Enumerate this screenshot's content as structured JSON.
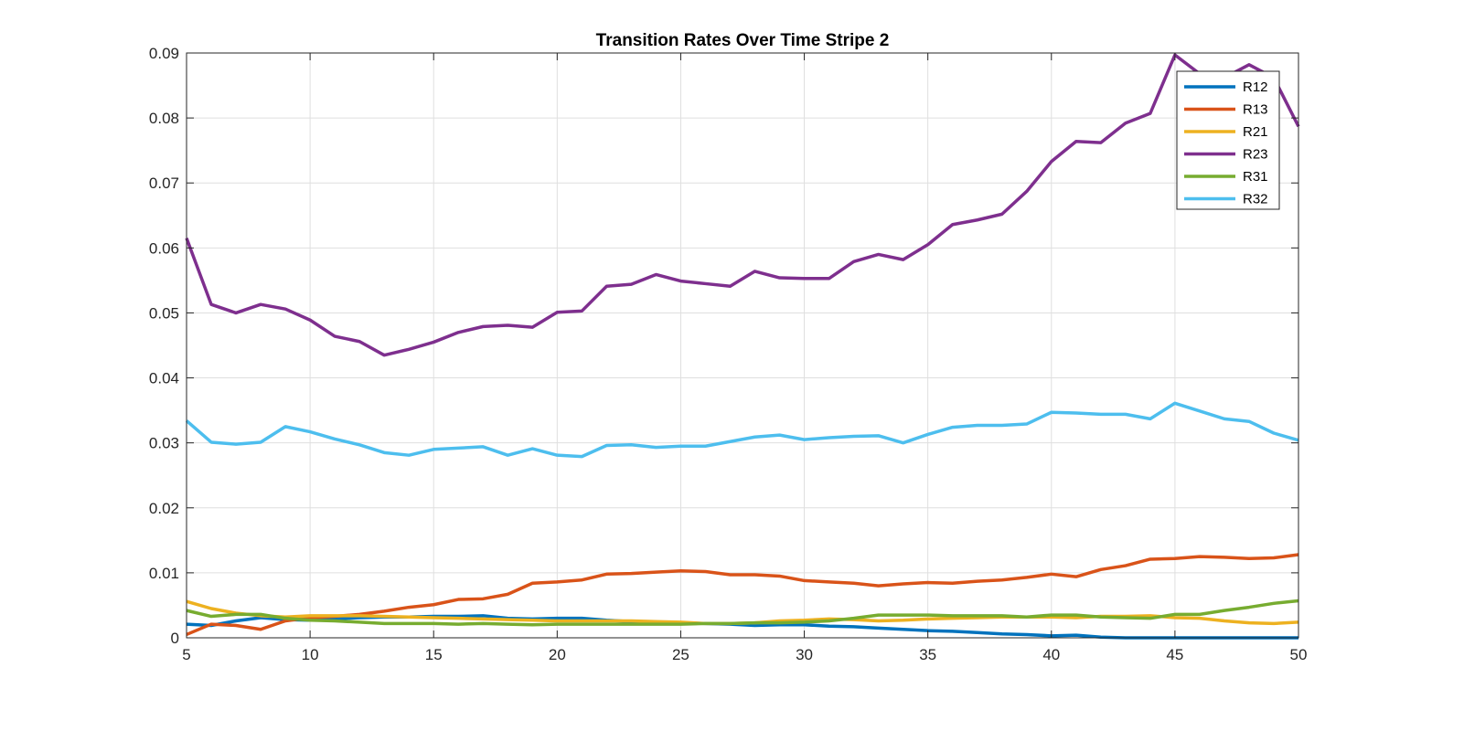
{
  "chart_data": {
    "type": "line",
    "title": "Transition Rates Over Time Stripe 2",
    "xlabel": "",
    "ylabel": "",
    "xlim": [
      5,
      50
    ],
    "ylim": [
      0,
      0.09
    ],
    "xticks": [
      5,
      10,
      15,
      20,
      25,
      30,
      35,
      40,
      45,
      50
    ],
    "xtick_labels": [
      "5",
      "10",
      "15",
      "20",
      "25",
      "30",
      "35",
      "40",
      "45",
      "50"
    ],
    "yticks": [
      0,
      0.01,
      0.02,
      0.03,
      0.04,
      0.05,
      0.06,
      0.07,
      0.08,
      0.09
    ],
    "ytick_labels": [
      "0",
      "0.01",
      "0.02",
      "0.03",
      "0.04",
      "0.05",
      "0.06",
      "0.07",
      "0.08",
      "0.09"
    ],
    "grid": true,
    "legend_position": "top-right",
    "x": [
      5,
      6,
      7,
      8,
      9,
      10,
      11,
      12,
      13,
      14,
      15,
      16,
      17,
      18,
      19,
      20,
      21,
      22,
      23,
      24,
      25,
      26,
      27,
      28,
      29,
      30,
      31,
      32,
      33,
      34,
      35,
      36,
      37,
      38,
      39,
      40,
      41,
      42,
      43,
      44,
      45,
      46,
      47,
      48,
      49,
      50
    ],
    "series": [
      {
        "name": "R12",
        "color": "#0072BD",
        "values": [
          0.0021,
          0.0019,
          0.0026,
          0.0031,
          0.0028,
          0.0027,
          0.0029,
          0.0031,
          0.0032,
          0.0032,
          0.0033,
          0.0033,
          0.0034,
          0.003,
          0.0029,
          0.003,
          0.003,
          0.0027,
          0.0025,
          0.0024,
          0.0023,
          0.0022,
          0.0021,
          0.0019,
          0.002,
          0.002,
          0.0018,
          0.0017,
          0.0015,
          0.0013,
          0.0011,
          0.001,
          0.0008,
          0.0006,
          0.0005,
          0.0003,
          0.0004,
          0.0001,
          0.0,
          0.0,
          0.0,
          0.0,
          0.0,
          0.0,
          0.0,
          0.0
        ]
      },
      {
        "name": "R13",
        "color": "#D95319",
        "values": [
          0.0005,
          0.0021,
          0.0019,
          0.0013,
          0.0026,
          0.0031,
          0.0033,
          0.0036,
          0.0041,
          0.0047,
          0.0051,
          0.0059,
          0.006,
          0.0067,
          0.0084,
          0.0086,
          0.0089,
          0.0098,
          0.0099,
          0.0101,
          0.0103,
          0.0102,
          0.0097,
          0.0097,
          0.0095,
          0.0088,
          0.0086,
          0.0084,
          0.008,
          0.0083,
          0.0085,
          0.0084,
          0.0087,
          0.0089,
          0.0093,
          0.0098,
          0.0094,
          0.0105,
          0.0111,
          0.0121,
          0.0122,
          0.0125,
          0.0124,
          0.0122,
          0.0123,
          0.0128
        ]
      },
      {
        "name": "R21",
        "color": "#EDB120",
        "values": [
          0.0056,
          0.0045,
          0.0038,
          0.0034,
          0.0032,
          0.0034,
          0.0034,
          0.0034,
          0.0033,
          0.0032,
          0.0031,
          0.003,
          0.0029,
          0.0028,
          0.0027,
          0.0026,
          0.0026,
          0.0026,
          0.0026,
          0.0025,
          0.0024,
          0.0022,
          0.0022,
          0.0023,
          0.0026,
          0.0027,
          0.0029,
          0.0028,
          0.0026,
          0.0027,
          0.0029,
          0.003,
          0.0031,
          0.0032,
          0.0032,
          0.0032,
          0.0031,
          0.0033,
          0.0033,
          0.0034,
          0.0031,
          0.003,
          0.0026,
          0.0023,
          0.0022,
          0.0024
        ]
      },
      {
        "name": "R23",
        "color": "#7E2F8E",
        "values": [
          0.0615,
          0.0513,
          0.05,
          0.0513,
          0.0506,
          0.0489,
          0.0464,
          0.0456,
          0.0435,
          0.0444,
          0.0455,
          0.047,
          0.0479,
          0.0481,
          0.0478,
          0.0501,
          0.0503,
          0.0541,
          0.0544,
          0.0559,
          0.0549,
          0.0545,
          0.0541,
          0.0564,
          0.0554,
          0.0553,
          0.0553,
          0.0579,
          0.059,
          0.0582,
          0.0605,
          0.0636,
          0.0643,
          0.0652,
          0.0687,
          0.0733,
          0.0764,
          0.0762,
          0.0792,
          0.0807,
          0.0897,
          0.0868,
          0.0862,
          0.0882,
          0.0862,
          0.0787
        ]
      },
      {
        "name": "R31",
        "color": "#77AC30",
        "values": [
          0.0042,
          0.0033,
          0.0036,
          0.0036,
          0.003,
          0.0027,
          0.0026,
          0.0024,
          0.0022,
          0.0022,
          0.0022,
          0.0021,
          0.0022,
          0.0021,
          0.002,
          0.0021,
          0.0021,
          0.0021,
          0.0021,
          0.0021,
          0.0021,
          0.0022,
          0.0022,
          0.0023,
          0.0023,
          0.0024,
          0.0026,
          0.003,
          0.0035,
          0.0035,
          0.0035,
          0.0034,
          0.0034,
          0.0034,
          0.0032,
          0.0035,
          0.0035,
          0.0032,
          0.0031,
          0.003,
          0.0036,
          0.0036,
          0.0042,
          0.0047,
          0.0053,
          0.0057
        ]
      },
      {
        "name": "R32",
        "color": "#4DBEEE",
        "values": [
          0.0334,
          0.0301,
          0.0298,
          0.0301,
          0.0325,
          0.0317,
          0.0306,
          0.0297,
          0.0285,
          0.0281,
          0.029,
          0.0292,
          0.0294,
          0.0281,
          0.0291,
          0.0281,
          0.0279,
          0.0296,
          0.0297,
          0.0293,
          0.0295,
          0.0295,
          0.0302,
          0.0309,
          0.0312,
          0.0305,
          0.0308,
          0.031,
          0.0311,
          0.03,
          0.0313,
          0.0324,
          0.0327,
          0.0327,
          0.0329,
          0.0347,
          0.0346,
          0.0344,
          0.0344,
          0.0337,
          0.0361,
          0.0349,
          0.0337,
          0.0333,
          0.0315,
          0.0304
        ]
      }
    ]
  }
}
